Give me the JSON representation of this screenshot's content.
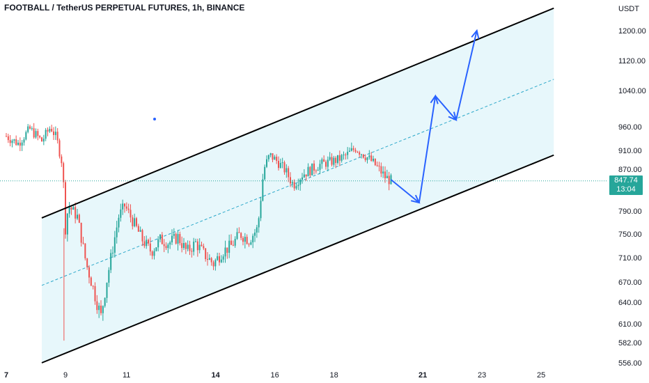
{
  "header": {
    "title": "FOOTBALL / TetherUS PERPETUAL FUTURES, 1h, BINANCE"
  },
  "price_badge": {
    "price": "847.74",
    "countdown": "13:04"
  },
  "colors": {
    "up": "#26a69a",
    "down": "#ef5350",
    "channel_fill": "#e7f7fb",
    "arrow": "#2962ff",
    "channel_line": "#000000",
    "midline": "#2aa7c9"
  },
  "chart_data": {
    "type": "candlestick",
    "title": "FOOTBALL / TetherUS PERPETUAL FUTURES, 1h, BINANCE",
    "yunit": "USDT",
    "y_axis_side": "right",
    "y_ticks": [
      "1200.00",
      "1120.00",
      "1040.00",
      "960.00",
      "910.00",
      "870.00",
      "790.00",
      "750.00",
      "710.00",
      "670.00",
      "640.00",
      "610.00",
      "582.00",
      "556.00"
    ],
    "x_ticks": [
      "7",
      "9",
      "11",
      "14",
      "16",
      "18",
      "21",
      "23",
      "25"
    ],
    "bold_x_ticks": [
      "7",
      "14",
      "21"
    ],
    "last_price": 847.74,
    "price_path": [
      [
        7.0,
        940
      ],
      [
        7.4,
        925
      ],
      [
        7.8,
        955
      ],
      [
        8.2,
        930
      ],
      [
        8.5,
        960
      ],
      [
        8.7,
        935
      ],
      [
        8.9,
        880
      ],
      [
        9.0,
        760
      ],
      [
        9.1,
        800
      ],
      [
        9.4,
        780
      ],
      [
        9.7,
        700
      ],
      [
        10.0,
        650
      ],
      [
        10.2,
        620
      ],
      [
        10.5,
        700
      ],
      [
        10.8,
        780
      ],
      [
        11.0,
        800
      ],
      [
        11.3,
        770
      ],
      [
        11.6,
        740
      ],
      [
        11.9,
        720
      ],
      [
        12.2,
        740
      ],
      [
        12.5,
        735
      ],
      [
        12.8,
        745
      ],
      [
        13.1,
        720
      ],
      [
        13.4,
        735
      ],
      [
        13.7,
        715
      ],
      [
        14.0,
        700
      ],
      [
        14.3,
        720
      ],
      [
        14.6,
        730
      ],
      [
        14.9,
        750
      ],
      [
        15.2,
        740
      ],
      [
        15.5,
        760
      ],
      [
        15.7,
        870
      ],
      [
        15.9,
        900
      ],
      [
        16.1,
        890
      ],
      [
        16.4,
        870
      ],
      [
        16.7,
        840
      ],
      [
        17.0,
        860
      ],
      [
        17.3,
        870
      ],
      [
        17.6,
        880
      ],
      [
        17.9,
        885
      ],
      [
        18.2,
        890
      ],
      [
        18.5,
        900
      ],
      [
        18.8,
        915
      ],
      [
        19.0,
        905
      ],
      [
        19.3,
        890
      ],
      [
        19.6,
        870
      ],
      [
        19.8,
        855
      ],
      [
        20.0,
        848
      ]
    ],
    "channel": {
      "upper": [
        [
          8.2,
          778
        ],
        [
          25.5,
          1260
        ]
      ],
      "lower": [
        [
          8.2,
          556
        ],
        [
          25.5,
          900
        ]
      ],
      "middle": [
        [
          8.2,
          665
        ],
        [
          25.5,
          1070
        ]
      ]
    },
    "projection_arrows": [
      [
        [
          20.0,
          850
        ],
        [
          20.95,
          806
        ]
      ],
      [
        [
          20.95,
          806
        ],
        [
          21.5,
          1028
        ]
      ],
      [
        [
          21.5,
          1028
        ],
        [
          22.2,
          975
        ]
      ],
      [
        [
          22.2,
          975
        ],
        [
          22.9,
          1200
        ]
      ]
    ]
  }
}
